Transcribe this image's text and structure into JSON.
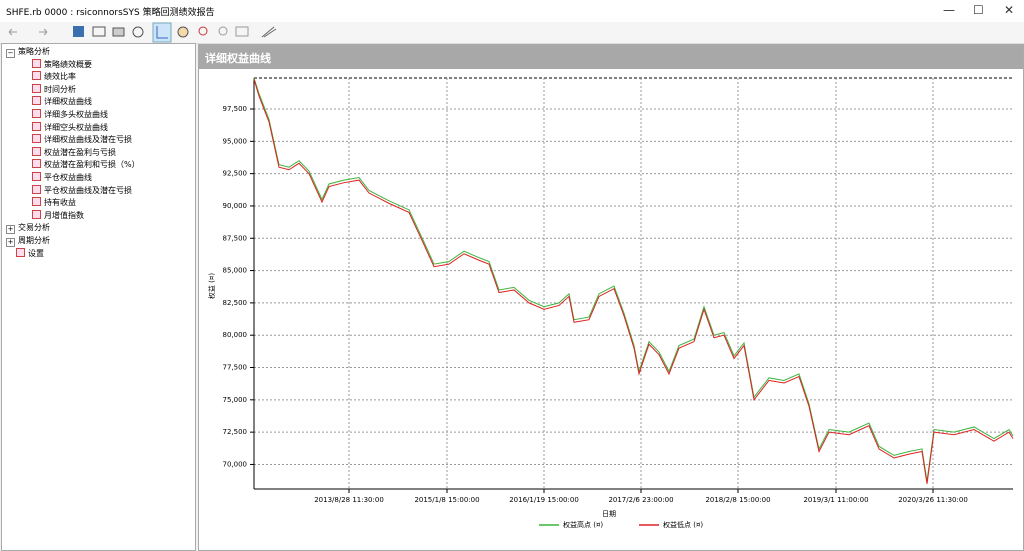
{
  "window": {
    "title": "SHFE.rb 0000 : rsiconnorsSYS 策略回测绩效报告"
  },
  "tree": [
    {
      "label": "策略分析",
      "children": [
        "策略绩效概要",
        "绩效比率",
        "时间分析",
        "详细权益曲线",
        "详细多头权益曲线",
        "详细空头权益曲线",
        "详细权益曲线及潜在亏损",
        "权益潜在盈利与亏损",
        "权益潜在盈利和亏损（%）",
        "平仓权益曲线",
        "平仓权益曲线及潜在亏损",
        "持有收益",
        "月增值指数"
      ]
    },
    {
      "label": "交易分析"
    },
    {
      "label": "周期分析"
    },
    {
      "label": "设置"
    }
  ],
  "panel_title": "详细权益曲线",
  "chart_data": {
    "type": "line",
    "x_label": "日期",
    "y_label": "权益 (¤)",
    "x": [
      0,
      5,
      15,
      25,
      35,
      45,
      55,
      68,
      75,
      90,
      105,
      115,
      135,
      155,
      170,
      180,
      195,
      210,
      225,
      235,
      245,
      260,
      275,
      290,
      305,
      315,
      320,
      335,
      345,
      360,
      370,
      380,
      385,
      395,
      405,
      415,
      425,
      440,
      450,
      460,
      470,
      480,
      490,
      500,
      515,
      530,
      545,
      555,
      565,
      575,
      595,
      615,
      625,
      640,
      655,
      668,
      673,
      680,
      700,
      720,
      740,
      755,
      759
    ],
    "series": [
      {
        "name": "权益高点 (¤)",
        "color": "#3cb43c",
        "values": [
          99900,
          98700,
          96700,
          93200,
          93000,
          93500,
          92700,
          90500,
          91700,
          92000,
          92200,
          91200,
          90400,
          89700,
          87200,
          85500,
          85700,
          86500,
          86000,
          85700,
          83500,
          83700,
          82700,
          82200,
          82500,
          83200,
          81200,
          81400,
          83200,
          83800,
          81700,
          79200,
          77200,
          79500,
          78700,
          77200,
          79200,
          79700,
          82200,
          80000,
          80200,
          78400,
          79400,
          75200,
          76700,
          76500,
          77000,
          74700,
          71200,
          72700,
          72500,
          73200,
          71400,
          70700,
          71000,
          71200,
          68700,
          72700,
          72500,
          72900,
          72000,
          72700,
          72200
        ]
      },
      {
        "name": "权益低点 (¤)",
        "color": "#e02020",
        "values": [
          99800,
          98500,
          96500,
          93000,
          92800,
          93300,
          92500,
          90300,
          91500,
          91800,
          92000,
          91000,
          90200,
          89500,
          87000,
          85300,
          85500,
          86300,
          85800,
          85500,
          83300,
          83500,
          82500,
          82000,
          82300,
          83000,
          81000,
          81200,
          83000,
          83600,
          81500,
          79000,
          77000,
          79300,
          78500,
          77000,
          79000,
          79500,
          82000,
          79800,
          80000,
          78200,
          79200,
          75000,
          76500,
          76300,
          76800,
          74500,
          71000,
          72500,
          72300,
          73000,
          71200,
          70500,
          70800,
          71000,
          68500,
          72500,
          72300,
          72700,
          71800,
          72500,
          72000
        ]
      }
    ],
    "xlim": [
      0,
      759
    ],
    "ylim": [
      68100,
      99900
    ],
    "xticks": [
      {
        "value": 95,
        "label": "2013/8/28 11:30:00"
      },
      {
        "value": 193,
        "label": "2015/1/8 15:00:00"
      },
      {
        "value": 290,
        "label": "2016/1/19 15:00:00"
      },
      {
        "value": 387,
        "label": "2017/2/6 23:00:00"
      },
      {
        "value": 484,
        "label": "2018/2/8 15:00:00"
      },
      {
        "value": 582,
        "label": "2019/3/1 11:00:00"
      },
      {
        "value": 679,
        "label": "2020/3/26 11:30:00"
      }
    ],
    "yticks": [
      {
        "value": 70000,
        "label": "70,000"
      },
      {
        "value": 72500,
        "label": "72,500"
      },
      {
        "value": 75000,
        "label": "75,000"
      },
      {
        "value": 77500,
        "label": "77,500"
      },
      {
        "value": 80000,
        "label": "80,000"
      },
      {
        "value": 82500,
        "label": "82,500"
      },
      {
        "value": 85000,
        "label": "85,000"
      },
      {
        "value": 87500,
        "label": "87,500"
      },
      {
        "value": 90000,
        "label": "90,000"
      },
      {
        "value": 92500,
        "label": "92,500"
      },
      {
        "value": 95000,
        "label": "95,000"
      },
      {
        "value": 97500,
        "label": "97,500"
      }
    ],
    "grid": true
  }
}
